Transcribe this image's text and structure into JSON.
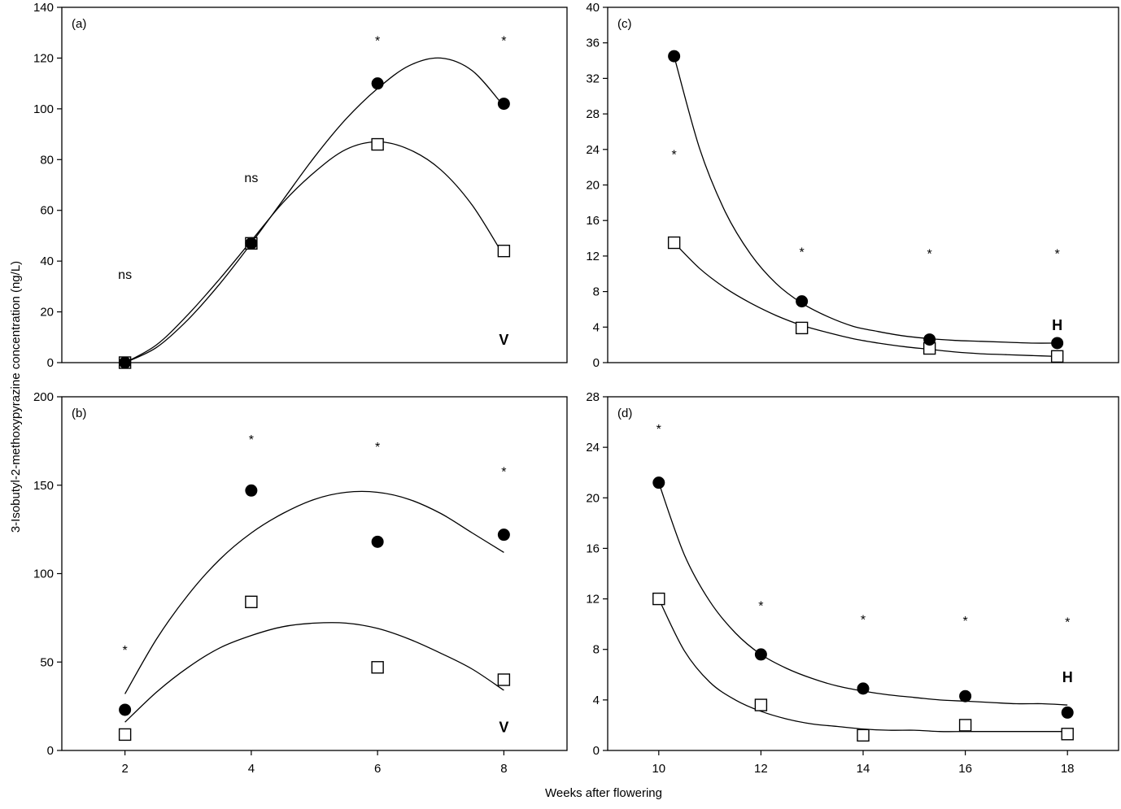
{
  "figure": {
    "y_axis_label": "3-Isobutyl-2-methoxypyrazine concentration (ng/L)",
    "x_axis_label": "Weeks after flowering"
  },
  "chart_data": [
    {
      "id": "a",
      "type": "scatter",
      "panel_label": "(a)",
      "xlim": [
        1,
        9
      ],
      "ylim": [
        0,
        140
      ],
      "x_ticks": [],
      "x_tick_labels": [],
      "y_ticks": [
        0,
        20,
        40,
        60,
        80,
        100,
        120,
        140
      ],
      "y_tick_labels": [
        "0",
        "20",
        "40",
        "60",
        "80",
        "100",
        "120",
        "140"
      ],
      "series": [
        {
          "marker": "filled-circle",
          "x": [
            2,
            4,
            6,
            8
          ],
          "y": [
            0,
            47,
            110,
            102
          ]
        },
        {
          "marker": "open-square",
          "x": [
            2,
            4,
            6,
            8
          ],
          "y": [
            0,
            47,
            86,
            44
          ]
        }
      ],
      "curves": [
        {
          "x": [
            2,
            2.5,
            3,
            3.5,
            4,
            4.5,
            5,
            5.5,
            6,
            6.5,
            7,
            7.5,
            8
          ],
          "y": [
            0,
            6,
            17,
            31,
            47,
            64,
            81,
            96,
            108,
            117,
            120,
            115,
            101
          ]
        },
        {
          "x": [
            2,
            2.5,
            3,
            3.5,
            4,
            4.5,
            5,
            5.5,
            6,
            6.5,
            7,
            7.5,
            8
          ],
          "y": [
            0,
            7,
            19,
            33,
            48,
            63,
            75,
            84,
            87,
            84,
            76,
            62,
            42
          ]
        }
      ],
      "annotations": [
        {
          "text": "ns",
          "x": 2,
          "y": 35,
          "bold": false
        },
        {
          "text": "ns",
          "x": 4,
          "y": 73,
          "bold": false
        },
        {
          "text": "*",
          "x": 6,
          "y": 127,
          "bold": false
        },
        {
          "text": "*",
          "x": 8,
          "y": 127,
          "bold": false
        },
        {
          "text": "V",
          "x": 8,
          "y": 9,
          "bold": true
        }
      ]
    },
    {
      "id": "b",
      "type": "scatter",
      "panel_label": "(b)",
      "xlim": [
        1,
        9
      ],
      "ylim": [
        0,
        200
      ],
      "x_ticks": [
        2,
        4,
        6,
        8
      ],
      "x_tick_labels": [
        "2",
        "4",
        "6",
        "8"
      ],
      "y_ticks": [
        0,
        50,
        100,
        150,
        200
      ],
      "y_tick_labels": [
        "0",
        "50",
        "100",
        "150",
        "200"
      ],
      "series": [
        {
          "marker": "filled-circle",
          "x": [
            2,
            4,
            6,
            8
          ],
          "y": [
            23,
            147,
            118,
            122
          ]
        },
        {
          "marker": "open-square",
          "x": [
            2,
            4,
            6,
            8
          ],
          "y": [
            9,
            84,
            47,
            40
          ]
        }
      ],
      "curves": [
        {
          "x": [
            2,
            2.5,
            3,
            3.5,
            4,
            4.5,
            5,
            5.5,
            6,
            6.5,
            7,
            7.5,
            8
          ],
          "y": [
            32,
            63,
            88,
            108,
            123,
            134,
            142,
            146,
            146,
            142,
            134,
            123,
            112
          ]
        },
        {
          "x": [
            2,
            2.5,
            3,
            3.5,
            4,
            4.5,
            5,
            5.5,
            6,
            6.5,
            7,
            7.5,
            8
          ],
          "y": [
            16,
            33,
            47,
            58,
            65,
            70,
            72,
            72,
            69,
            63,
            55,
            46,
            34
          ]
        }
      ],
      "annotations": [
        {
          "text": "*",
          "x": 2,
          "y": 57,
          "bold": false
        },
        {
          "text": "*",
          "x": 4,
          "y": 176,
          "bold": false
        },
        {
          "text": "*",
          "x": 6,
          "y": 172,
          "bold": false
        },
        {
          "text": "*",
          "x": 8,
          "y": 158,
          "bold": false
        },
        {
          "text": "V",
          "x": 8,
          "y": 13,
          "bold": true
        }
      ]
    },
    {
      "id": "c",
      "type": "scatter",
      "panel_label": "(c)",
      "xlim": [
        9,
        19
      ],
      "ylim": [
        0,
        40
      ],
      "x_ticks": [],
      "x_tick_labels": [],
      "y_ticks": [
        0,
        4,
        8,
        12,
        16,
        20,
        24,
        28,
        32,
        36,
        40
      ],
      "y_tick_labels": [
        "0",
        "4",
        "8",
        "12",
        "16",
        "20",
        "24",
        "28",
        "32",
        "36",
        "40"
      ],
      "series": [
        {
          "marker": "filled-circle",
          "x": [
            10.3,
            12.8,
            15.3,
            17.8
          ],
          "y": [
            34.5,
            6.9,
            2.6,
            2.2
          ]
        },
        {
          "marker": "open-square",
          "x": [
            10.3,
            12.8,
            15.3,
            17.8
          ],
          "y": [
            13.5,
            3.9,
            1.6,
            0.7
          ]
        }
      ],
      "curves": [
        {
          "x": [
            10.3,
            10.8,
            11.3,
            11.8,
            12.3,
            12.8,
            13.3,
            13.8,
            14.3,
            14.8,
            15.3,
            15.8,
            16.3,
            16.8,
            17.3,
            17.8
          ],
          "y": [
            34.5,
            24.1,
            17.0,
            12.2,
            8.9,
            6.7,
            5.2,
            4.1,
            3.5,
            3.0,
            2.7,
            2.5,
            2.4,
            2.3,
            2.2,
            2.2
          ]
        },
        {
          "x": [
            10.3,
            10.8,
            11.3,
            11.8,
            12.3,
            12.8,
            13.3,
            13.8,
            14.3,
            14.8,
            15.3,
            15.8,
            16.3,
            16.8,
            17.3,
            17.8
          ],
          "y": [
            13.5,
            10.6,
            8.4,
            6.7,
            5.3,
            4.2,
            3.4,
            2.7,
            2.2,
            1.8,
            1.5,
            1.2,
            1.0,
            0.9,
            0.8,
            0.7
          ]
        }
      ],
      "annotations": [
        {
          "text": "*",
          "x": 10.3,
          "y": 23.5,
          "bold": false
        },
        {
          "text": "*",
          "x": 12.8,
          "y": 12.5,
          "bold": false
        },
        {
          "text": "*",
          "x": 15.3,
          "y": 12.3,
          "bold": false
        },
        {
          "text": "*",
          "x": 17.8,
          "y": 12.3,
          "bold": false
        },
        {
          "text": "H",
          "x": 17.8,
          "y": 4.2,
          "bold": true
        }
      ]
    },
    {
      "id": "d",
      "type": "scatter",
      "panel_label": "(d)",
      "xlim": [
        9,
        19
      ],
      "ylim": [
        0,
        28
      ],
      "x_ticks": [
        10,
        12,
        14,
        16,
        18
      ],
      "x_tick_labels": [
        "10",
        "12",
        "14",
        "16",
        "18"
      ],
      "y_ticks": [
        0,
        4,
        8,
        12,
        16,
        20,
        24,
        28
      ],
      "y_tick_labels": [
        "0",
        "4",
        "8",
        "12",
        "16",
        "20",
        "24",
        "28"
      ],
      "series": [
        {
          "marker": "filled-circle",
          "x": [
            10,
            12,
            14,
            16,
            18
          ],
          "y": [
            21.2,
            7.6,
            4.9,
            4.3,
            3.0
          ]
        },
        {
          "marker": "open-square",
          "x": [
            10,
            12,
            14,
            16,
            18
          ],
          "y": [
            12.0,
            3.6,
            1.2,
            2.0,
            1.3
          ]
        }
      ],
      "curves": [
        {
          "x": [
            10,
            10.5,
            11,
            11.5,
            12,
            12.5,
            13,
            13.5,
            14,
            14.5,
            15,
            15.5,
            16,
            16.5,
            17,
            17.5,
            18
          ],
          "y": [
            21.2,
            15.5,
            11.8,
            9.3,
            7.6,
            6.5,
            5.7,
            5.1,
            4.7,
            4.4,
            4.2,
            4.0,
            3.9,
            3.8,
            3.7,
            3.7,
            3.6
          ]
        },
        {
          "x": [
            10,
            10.5,
            11,
            11.5,
            12,
            12.5,
            13,
            13.5,
            14,
            14.5,
            15,
            15.5,
            16,
            16.5,
            17,
            17.5,
            18
          ],
          "y": [
            12.0,
            7.9,
            5.4,
            4.0,
            3.1,
            2.5,
            2.1,
            1.9,
            1.7,
            1.6,
            1.6,
            1.5,
            1.5,
            1.5,
            1.5,
            1.5,
            1.5
          ]
        }
      ],
      "annotations": [
        {
          "text": "*",
          "x": 10,
          "y": 25.5,
          "bold": false
        },
        {
          "text": "*",
          "x": 12,
          "y": 11.5,
          "bold": false
        },
        {
          "text": "*",
          "x": 14,
          "y": 10.4,
          "bold": false
        },
        {
          "text": "*",
          "x": 16,
          "y": 10.3,
          "bold": false
        },
        {
          "text": "*",
          "x": 18,
          "y": 10.2,
          "bold": false
        },
        {
          "text": "H",
          "x": 18,
          "y": 5.8,
          "bold": true
        }
      ]
    }
  ]
}
